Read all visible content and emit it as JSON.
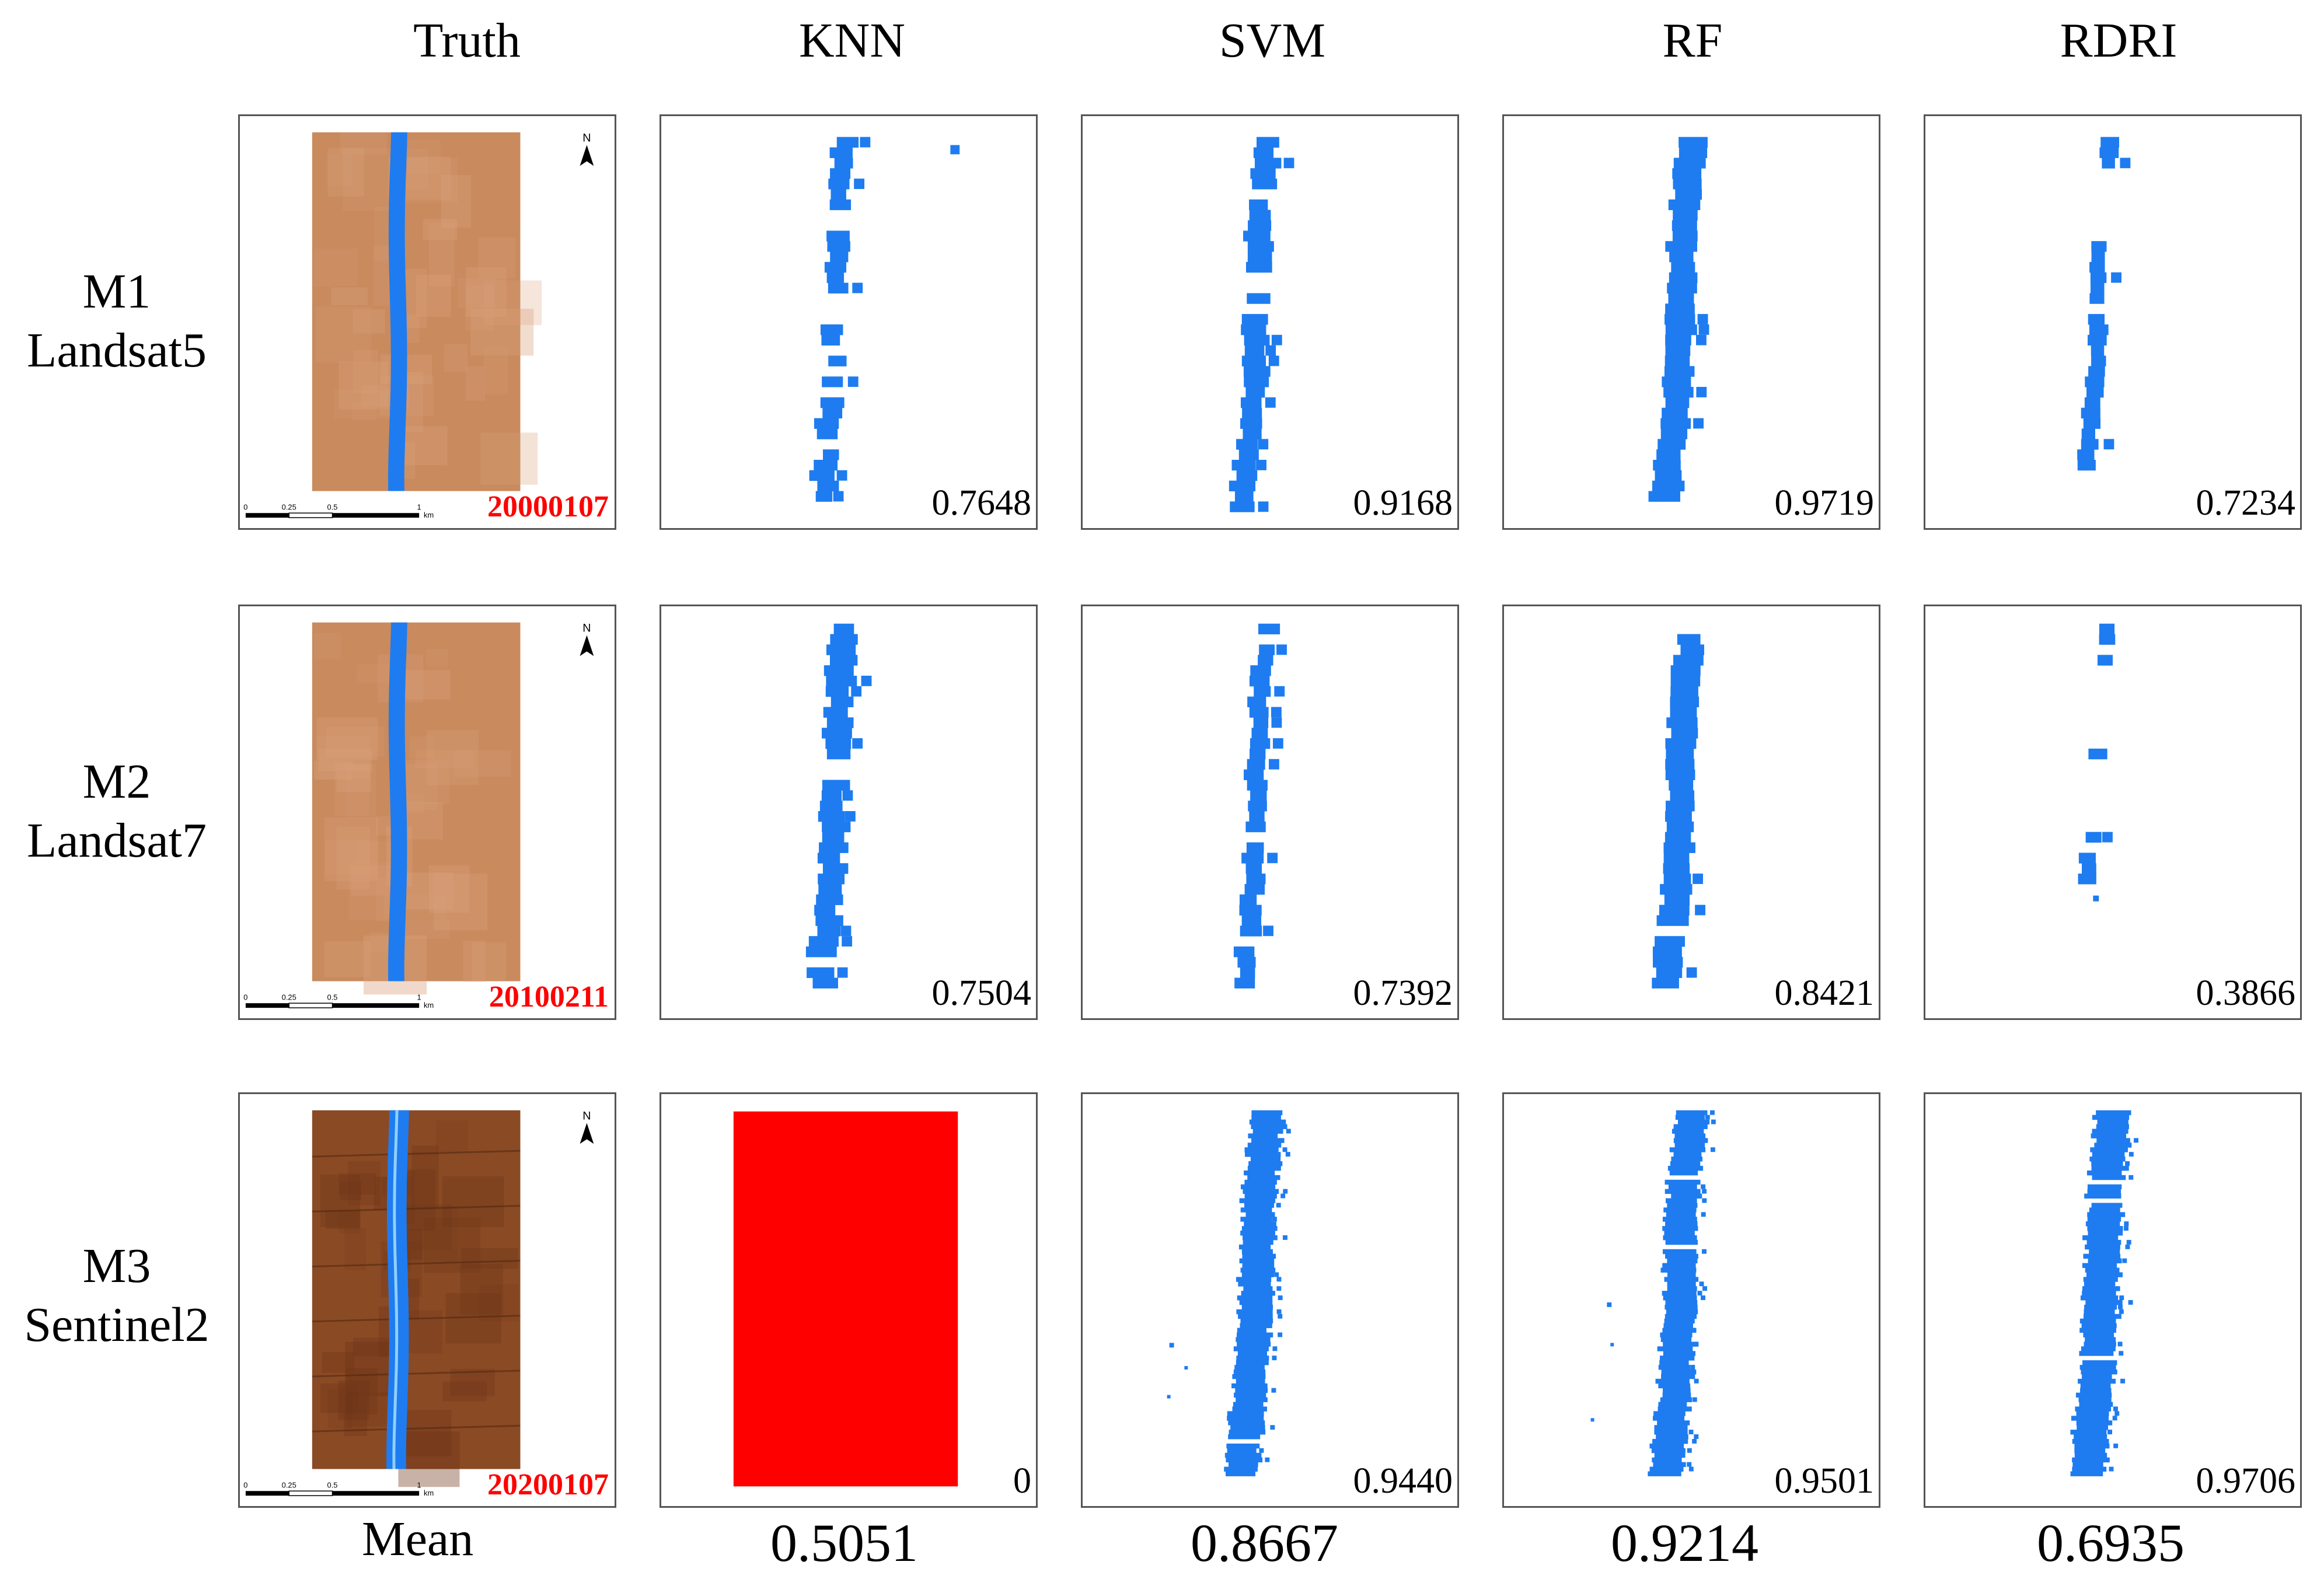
{
  "columns": [
    {
      "key": "truth",
      "label": "Truth"
    },
    {
      "key": "knn",
      "label": "KNN"
    },
    {
      "key": "svm",
      "label": "SVM"
    },
    {
      "key": "rf",
      "label": "RF"
    },
    {
      "key": "rdri",
      "label": "RDRI"
    }
  ],
  "rows": [
    {
      "model": "M1",
      "sensor": "Landsat5",
      "date": "20000107",
      "scores": {
        "knn": "0.7648",
        "svm": "0.9168",
        "rf": "0.9719",
        "rdri": "0.7234"
      }
    },
    {
      "model": "M2",
      "sensor": "Landsat7",
      "date": "20100211",
      "scores": {
        "knn": "0.7504",
        "svm": "0.7392",
        "rf": "0.8421",
        "rdri": "0.3866"
      }
    },
    {
      "model": "M3",
      "sensor": "Sentinel2",
      "date": "20200107",
      "scores": {
        "knn": "0",
        "svm": "0.9440",
        "rf": "0.9501",
        "rdri": "0.9706"
      }
    }
  ],
  "mean": {
    "label": "Mean",
    "knn": "0.5051",
    "svm": "0.8667",
    "rf": "0.9214",
    "rdri": "0.6935"
  },
  "scale_bar": {
    "ticks": [
      "0",
      "0.25",
      "0.5",
      "1"
    ],
    "unit": "km"
  },
  "north_label": "N",
  "colors": {
    "water": "#1e7cf0",
    "failed": "#ff0000",
    "date_text": "#ff0000",
    "land_landsat": "#c98a5e",
    "land_sentinel": "#8a4a24"
  }
}
